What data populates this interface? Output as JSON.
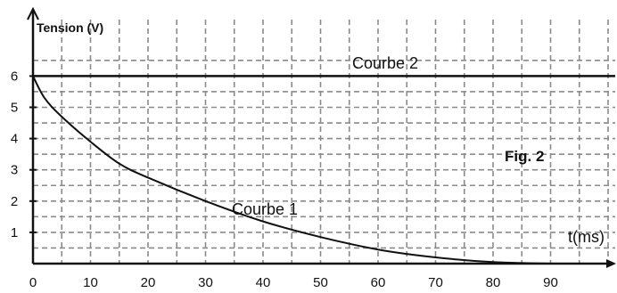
{
  "chart_data": {
    "type": "line",
    "ylabel": "Tension (V)",
    "xlabel": "t(ms)",
    "figure_label": "Fig. 2",
    "xlim": [
      0,
      100
    ],
    "ylim": [
      0,
      7
    ],
    "grid": true,
    "x_ticks": [
      0,
      10,
      20,
      30,
      40,
      50,
      60,
      70,
      80,
      90
    ],
    "y_ticks": [
      1,
      2,
      3,
      4,
      5,
      6
    ],
    "series": [
      {
        "name": "Courbe 2",
        "x": [
          0,
          100
        ],
        "y": [
          6,
          6
        ]
      },
      {
        "name": "Courbe 1",
        "x": [
          0,
          2,
          5,
          10,
          15,
          20,
          30,
          40,
          50,
          60,
          70,
          80,
          90
        ],
        "y": [
          6,
          5.3,
          4.7,
          3.9,
          3.2,
          2.75,
          2.0,
          1.35,
          0.85,
          0.45,
          0.2,
          0.05,
          0
        ]
      }
    ],
    "annotations": [
      "Courbe 2",
      "Courbe 1"
    ]
  }
}
